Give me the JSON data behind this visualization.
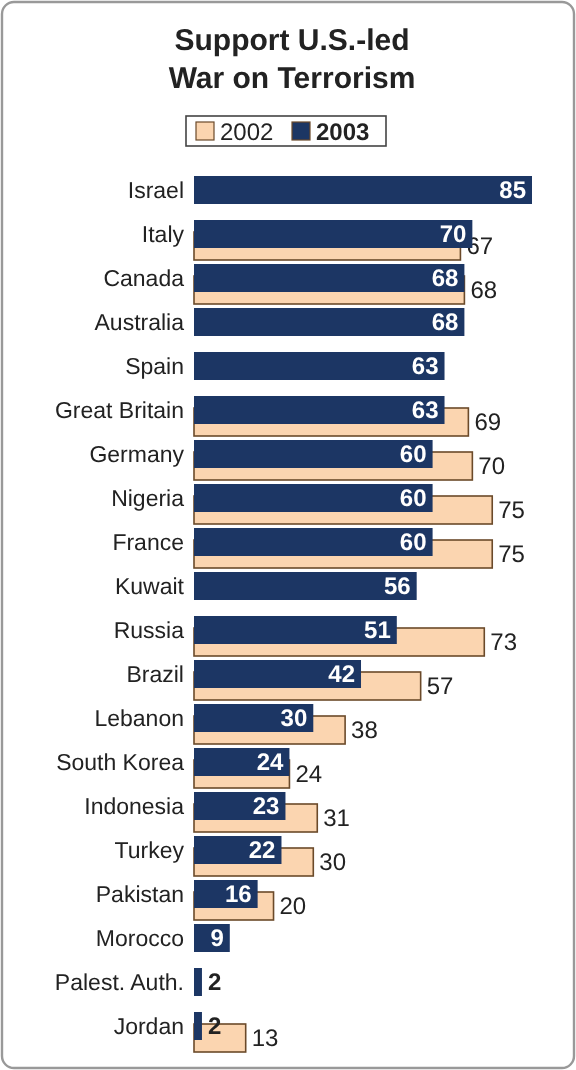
{
  "chart_data": {
    "type": "bar",
    "orientation": "horizontal",
    "title": "Support U.S.-led War on Terrorism",
    "legend": "top",
    "data_labels": true,
    "categories": [
      "Israel",
      "Italy",
      "Canada",
      "Australia",
      "Spain",
      "Great Britain",
      "Germany",
      "Nigeria",
      "France",
      "Kuwait",
      "Russia",
      "Brazil",
      "Lebanon",
      "South Korea",
      "Indonesia",
      "Turkey",
      "Pakistan",
      "Morocco",
      "Palest. Auth.",
      "Jordan"
    ],
    "series": [
      {
        "name": "2002",
        "color": "#fbd5b0",
        "values": [
          null,
          67,
          68,
          null,
          null,
          69,
          70,
          75,
          75,
          null,
          73,
          57,
          38,
          24,
          31,
          30,
          20,
          null,
          null,
          13
        ]
      },
      {
        "name": "2003",
        "color": "#1c3664",
        "values": [
          85,
          70,
          68,
          68,
          63,
          63,
          60,
          60,
          60,
          56,
          51,
          42,
          30,
          24,
          23,
          22,
          16,
          9,
          2,
          2
        ]
      }
    ]
  }
}
